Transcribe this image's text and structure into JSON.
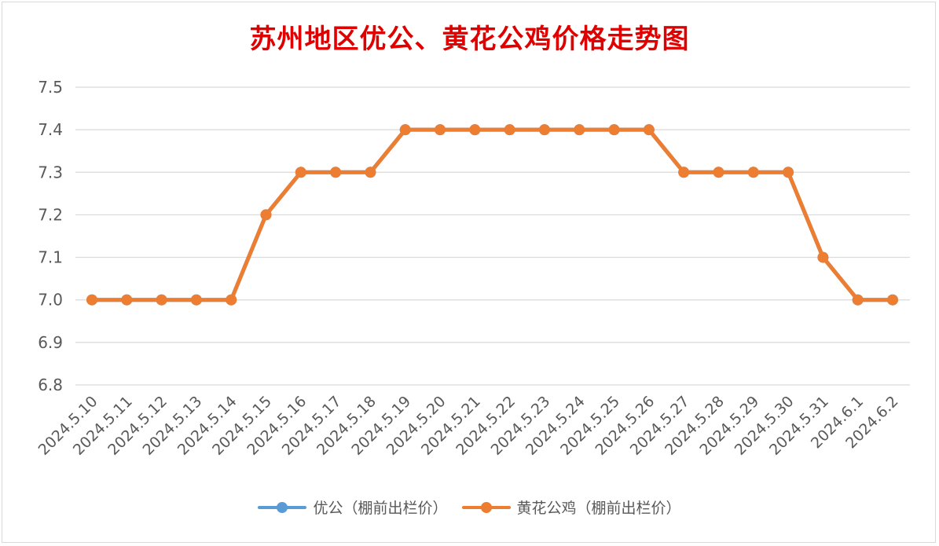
{
  "chart_data": {
    "type": "line",
    "title": "苏州地区优公、黄花公鸡价格走势图",
    "categories": [
      "2024.5.10",
      "2024.5.11",
      "2024.5.12",
      "2024.5.13",
      "2024.5.14",
      "2024.5.15",
      "2024.5.16",
      "2024.5.17",
      "2024.5.18",
      "2024.5.19",
      "2024.5.20",
      "2024.5.21",
      "2024.5.22",
      "2024.5.23",
      "2024.5.24",
      "2024.5.25",
      "2024.5.26",
      "2024.5.27",
      "2024.5.28",
      "2024.5.29",
      "2024.5.30",
      "2024.5.31",
      "2024.6.1",
      "2024.6.2"
    ],
    "series": [
      {
        "name": "优公（棚前出栏价）",
        "color": "#5b9bd5",
        "values": [
          7.0,
          7.0,
          7.0,
          7.0,
          7.0,
          7.2,
          7.3,
          7.3,
          7.3,
          7.4,
          7.4,
          7.4,
          7.4,
          7.4,
          7.4,
          7.4,
          7.4,
          7.3,
          7.3,
          7.3,
          7.3,
          7.1,
          7.0,
          7.0
        ]
      },
      {
        "name": "黄花公鸡（棚前出栏价）",
        "color": "#ed7d31",
        "values": [
          7.0,
          7.0,
          7.0,
          7.0,
          7.0,
          7.2,
          7.3,
          7.3,
          7.3,
          7.4,
          7.4,
          7.4,
          7.4,
          7.4,
          7.4,
          7.4,
          7.4,
          7.3,
          7.3,
          7.3,
          7.3,
          7.1,
          7.0,
          7.0
        ]
      }
    ],
    "ylim": [
      6.8,
      7.5
    ],
    "yticks": [
      "6.8",
      "6.9",
      "7.0",
      "7.1",
      "7.2",
      "7.3",
      "7.4",
      "7.5"
    ],
    "grid": true,
    "legend_position": "bottom"
  }
}
